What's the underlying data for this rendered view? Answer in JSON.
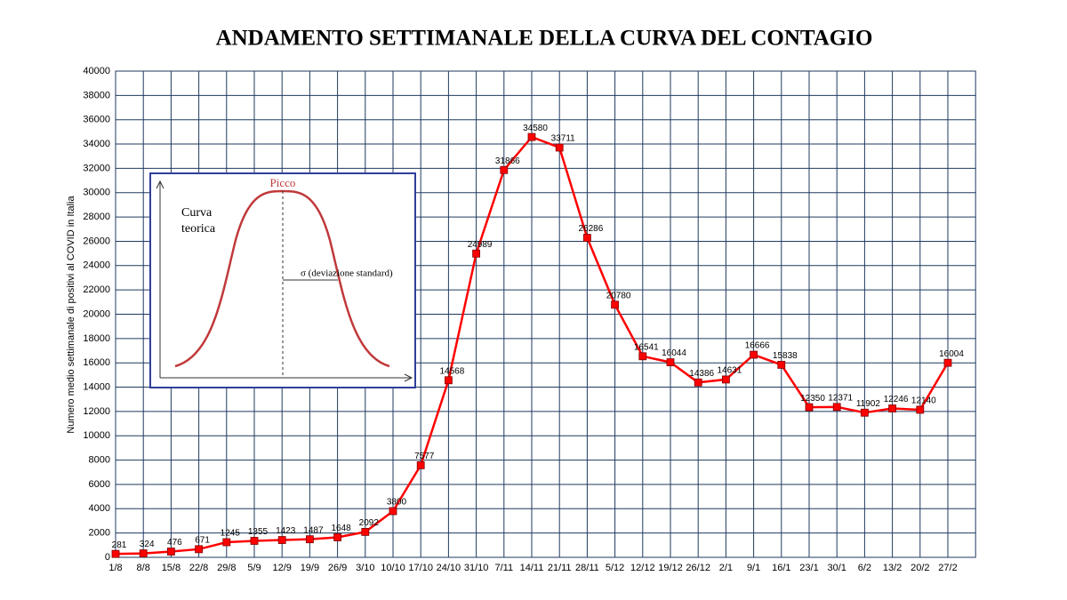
{
  "chart_data": {
    "type": "line",
    "title": "ANDAMENTO SETTIMANALE DELLA CURVA DEL CONTAGIO",
    "y_label": "Numero medio settimanale di positivi al COVID in Italia",
    "categories": [
      "1/8",
      "8/8",
      "15/8",
      "22/8",
      "29/8",
      "5/9",
      "12/9",
      "19/9",
      "26/9",
      "3/10",
      "10/10",
      "17/10",
      "24/10",
      "31/10",
      "7/11",
      "14/11",
      "21/11",
      "28/11",
      "5/12",
      "12/12",
      "19/12",
      "26/12",
      "2/1",
      "9/1",
      "16/1",
      "23/1",
      "30/1",
      "6/2",
      "13/2",
      "20/2",
      "27/2"
    ],
    "series": [
      {
        "name": "Numero medio settimanale di positivi",
        "color": "#ff0000",
        "values": [
          281,
          324,
          476,
          671,
          1245,
          1355,
          1423,
          1487,
          1648,
          2092,
          3800,
          7577,
          14568,
          24989,
          31866,
          34580,
          33711,
          26286,
          20780,
          16541,
          16044,
          14386,
          14631,
          16666,
          15838,
          12350,
          12371,
          11902,
          12246,
          12140,
          16004
        ]
      }
    ],
    "ylim": [
      0,
      40000
    ],
    "yticks": [
      0,
      2000,
      4000,
      6000,
      8000,
      10000,
      12000,
      14000,
      16000,
      18000,
      20000,
      22000,
      24000,
      26000,
      28000,
      30000,
      32000,
      34000,
      36000,
      38000,
      40000
    ],
    "grid": true,
    "inset": {
      "peak_label": "Picco",
      "curve_label": [
        "Curva",
        "teorica"
      ],
      "sigma_label": "σ (deviazione standard)"
    }
  }
}
